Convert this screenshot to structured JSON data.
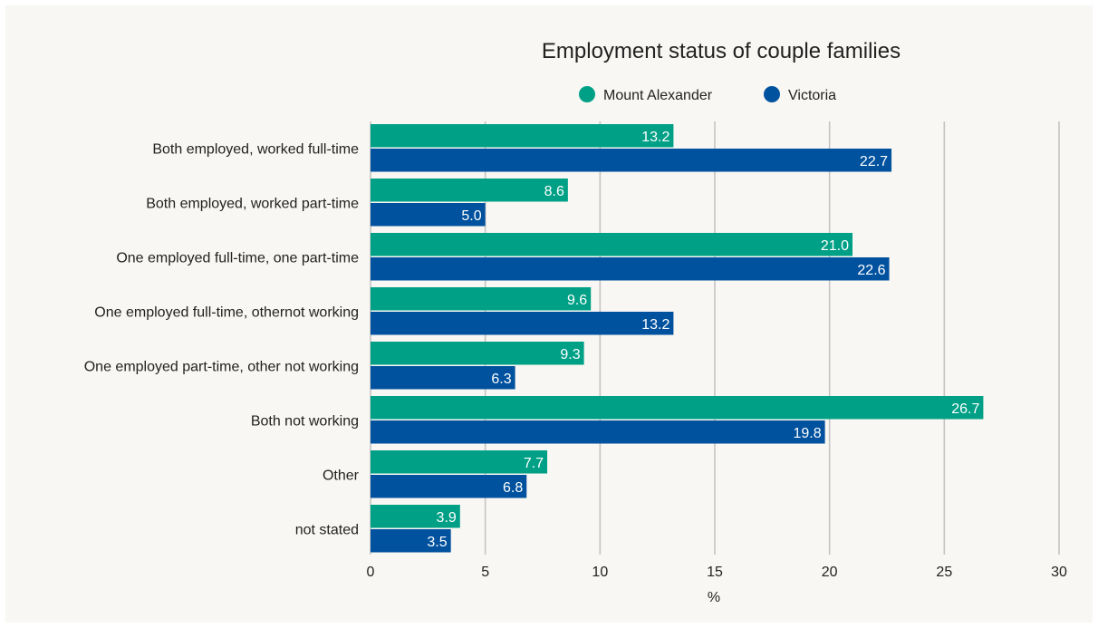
{
  "chart_data": {
    "type": "bar",
    "orientation": "horizontal",
    "title": "Employment status of couple families",
    "xlabel": "%",
    "ylabel": "",
    "xlim": [
      0,
      30
    ],
    "x_ticks": [
      0,
      5,
      10,
      15,
      20,
      25,
      30
    ],
    "grid": true,
    "legend_position": "top",
    "categories": [
      "Both employed, worked full-time",
      "Both employed, worked part-time",
      "One employed full-time, one part-time",
      "One employed full-time, othernot working",
      "One employed part-time, other not working",
      "Both not working",
      "Other",
      "not stated"
    ],
    "series": [
      {
        "name": "Mount Alexander",
        "color": "#00a086",
        "values": [
          13.2,
          8.6,
          21.0,
          9.6,
          9.3,
          26.7,
          7.7,
          3.9
        ],
        "labels": [
          "13.2",
          "8.6",
          "21.0",
          "9.6",
          "9.3",
          "26.7",
          "7.7",
          "3.9"
        ]
      },
      {
        "name": "Victoria",
        "color": "#00519e",
        "values": [
          22.7,
          5.0,
          22.6,
          13.2,
          6.3,
          19.8,
          6.8,
          3.5
        ],
        "labels": [
          "22.7",
          "5.0",
          "22.6",
          "13.2",
          "6.3",
          "19.8",
          "6.8",
          "3.5"
        ]
      }
    ]
  }
}
